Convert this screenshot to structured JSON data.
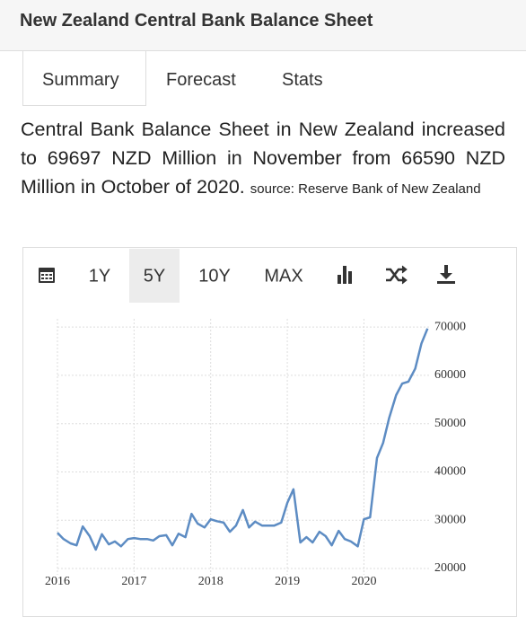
{
  "header": {
    "title": "New Zealand Central Bank Balance Sheet"
  },
  "tabs": [
    "Summary",
    "Forecast",
    "Stats"
  ],
  "summary": {
    "text": "Central Bank Balance Sheet in New Zealand increased to 69697 NZD Million in November from 66590 NZD Million in October of 2020.",
    "source": "source: Reserve Bank of New Zealand"
  },
  "toolbar": {
    "ranges": [
      "1Y",
      "5Y",
      "10Y",
      "MAX"
    ],
    "selected": "5Y"
  },
  "chart_data": {
    "type": "line",
    "color": "#5d8cc3",
    "grid": true,
    "x": [
      2016,
      2016.08,
      2016.17,
      2016.25,
      2016.33,
      2016.42,
      2016.5,
      2016.58,
      2016.67,
      2016.75,
      2016.83,
      2016.92,
      2017,
      2017.08,
      2017.17,
      2017.25,
      2017.33,
      2017.42,
      2017.5,
      2017.58,
      2017.67,
      2017.75,
      2017.83,
      2017.92,
      2018,
      2018.08,
      2018.17,
      2018.25,
      2018.33,
      2018.42,
      2018.5,
      2018.58,
      2018.67,
      2018.75,
      2018.83,
      2018.92,
      2019,
      2019.08,
      2019.17,
      2019.25,
      2019.33,
      2019.42,
      2019.5,
      2019.58,
      2019.67,
      2019.75,
      2019.83,
      2019.92,
      2020,
      2020.08,
      2020.17,
      2020.25,
      2020.33,
      2020.42,
      2020.5,
      2020.58,
      2020.67,
      2020.75,
      2020.83
    ],
    "values": [
      27400,
      26100,
      25200,
      24800,
      28700,
      26700,
      23900,
      27100,
      25000,
      25600,
      24600,
      26100,
      26300,
      26100,
      26100,
      25800,
      26700,
      26900,
      24800,
      27200,
      26500,
      31300,
      29300,
      28500,
      30200,
      29800,
      29500,
      27600,
      28900,
      32100,
      28500,
      29700,
      28900,
      28900,
      28900,
      29500,
      33600,
      36400,
      25400,
      26500,
      25400,
      27600,
      26700,
      24800,
      27800,
      26100,
      25600,
      24600,
      30200,
      30600,
      42900,
      46000,
      51200,
      55900,
      58300,
      58700,
      61400,
      66590,
      69697
    ],
    "xlim": [
      2016,
      2020.85
    ],
    "xticks": [
      2016,
      2017,
      2018,
      2019,
      2020
    ],
    "ylim": [
      18700,
      71700
    ],
    "yticks": [
      20000,
      30000,
      40000,
      50000,
      60000,
      70000
    ]
  }
}
